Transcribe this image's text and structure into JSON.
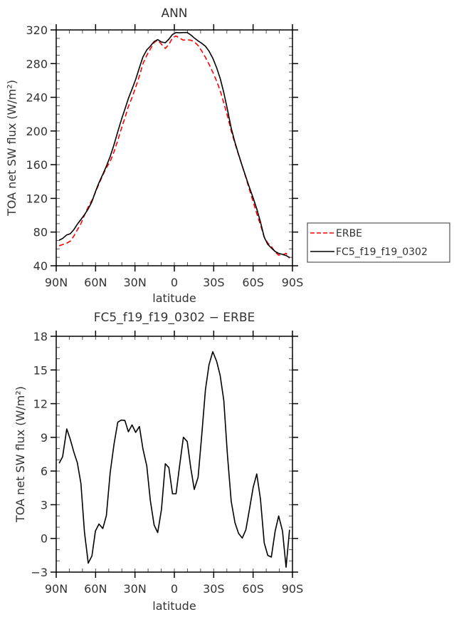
{
  "chart_data": [
    {
      "type": "line",
      "title": "ANN",
      "xlabel": "latitude",
      "ylabel": "TOA net SW flux (W/m²)",
      "xlim": [
        90,
        -90
      ],
      "ylim": [
        40,
        320
      ],
      "xticks": [
        90,
        60,
        30,
        0,
        -30,
        -60,
        -90
      ],
      "xtick_labels": [
        "90N",
        "60N",
        "30N",
        "0",
        "30S",
        "60S",
        "90S"
      ],
      "yticks": [
        40,
        80,
        120,
        160,
        200,
        240,
        280,
        320
      ],
      "ytick_labels": [
        "40",
        "80",
        "120",
        "160",
        "200",
        "240",
        "280",
        "320"
      ],
      "grid": false,
      "legend_position": "right",
      "x": [
        87.8,
        85.1,
        82.0,
        79.3,
        76.6,
        73.9,
        71.2,
        68.5,
        65.6,
        62.8,
        60.1,
        57.4,
        54.5,
        51.8,
        48.9,
        46.0,
        43.1,
        40.4,
        37.7,
        35.0,
        32.2,
        29.5,
        26.6,
        23.9,
        21.0,
        18.3,
        15.4,
        12.7,
        9.8,
        6.9,
        4.2,
        1.4,
        -1.3,
        -4.0,
        -6.9,
        -9.8,
        -12.5,
        -15.2,
        -18.1,
        -20.8,
        -23.7,
        -26.4,
        -29.3,
        -32.2,
        -34.9,
        -37.7,
        -40.4,
        -43.3,
        -46.2,
        -48.9,
        -51.8,
        -54.5,
        -57.2,
        -60.1,
        -62.8,
        -65.6,
        -68.5,
        -71.2,
        -73.9,
        -76.8,
        -79.5,
        -82.4,
        -85.1,
        -87.8
      ],
      "series": [
        {
          "name": "ERBE",
          "color": "#ff0000",
          "dash": true,
          "values": [
            63.7,
            65.1,
            66.8,
            69.2,
            75.1,
            82.6,
            90.0,
            100.0,
            109.8,
            117.7,
            127.2,
            137.3,
            147.6,
            156.3,
            163.8,
            175.3,
            188.8,
            202.7,
            215.4,
            229.1,
            239.8,
            251.7,
            265.2,
            279.9,
            289.9,
            297.2,
            305.0,
            308.0,
            303.0,
            298.1,
            302.7,
            310.6,
            312.9,
            310.1,
            307.9,
            308.3,
            307.8,
            306.0,
            301.5,
            295.1,
            287.4,
            279.4,
            269.9,
            259.4,
            248.0,
            233.3,
            218.4,
            200.1,
            185.1,
            171.9,
            158.3,
            144.8,
            130.4,
            115.7,
            101.9,
            88.6,
            74.2,
            66.9,
            62.8,
            56.2,
            52.6,
            52.8,
            54.7,
            49.0
          ]
        },
        {
          "name": "FC5_f19_f19_0302",
          "color": "#000000",
          "dash": false,
          "values": [
            70.4,
            72.4,
            76.6,
            78.0,
            82.8,
            89.3,
            94.9,
            100.6,
            107.6,
            116.1,
            127.9,
            138.6,
            148.5,
            158.3,
            169.6,
            183.7,
            199.2,
            213.2,
            225.9,
            238.6,
            249.9,
            261.1,
            275.2,
            287.9,
            296.3,
            300.6,
            306.2,
            308.5,
            305.6,
            304.8,
            309.0,
            314.6,
            316.9,
            316.6,
            316.9,
            316.9,
            314.1,
            310.4,
            307.0,
            304.2,
            300.6,
            294.9,
            286.5,
            275.2,
            262.5,
            245.6,
            225.9,
            203.4,
            186.5,
            172.4,
            158.3,
            145.6,
            133.0,
            120.3,
            107.6,
            92.1,
            73.8,
            65.4,
            61.1,
            56.9,
            54.6,
            53.5,
            52.1,
            49.8
          ]
        }
      ]
    },
    {
      "type": "line",
      "title": "FC5_f19_f19_0302 − ERBE",
      "xlabel": "latitude",
      "ylabel": "TOA net SW flux (W/m²)",
      "xlim": [
        90,
        -90
      ],
      "ylim": [
        -3,
        18
      ],
      "xticks": [
        90,
        60,
        30,
        0,
        -30,
        -60,
        -90
      ],
      "xtick_labels": [
        "90N",
        "60N",
        "30N",
        "0",
        "30S",
        "60S",
        "90S"
      ],
      "yticks": [
        -3,
        0,
        3,
        6,
        9,
        12,
        15,
        18
      ],
      "ytick_labels": [
        "−3",
        "0",
        "3",
        "6",
        "9",
        "12",
        "15",
        "18"
      ],
      "grid": false,
      "x": [
        87.8,
        85.1,
        82.0,
        79.3,
        76.6,
        73.9,
        71.2,
        68.5,
        65.6,
        62.8,
        60.1,
        57.4,
        54.5,
        51.8,
        48.9,
        46.0,
        43.1,
        40.4,
        37.7,
        35.0,
        32.2,
        29.5,
        26.6,
        23.9,
        21.0,
        18.3,
        15.4,
        12.7,
        9.8,
        6.9,
        4.2,
        1.4,
        -1.3,
        -4.0,
        -6.9,
        -9.8,
        -12.5,
        -15.2,
        -18.1,
        -20.8,
        -23.7,
        -26.4,
        -29.3,
        -32.2,
        -34.9,
        -37.7,
        -40.4,
        -43.3,
        -46.2,
        -48.9,
        -51.8,
        -54.5,
        -57.2,
        -60.1,
        -62.8,
        -65.6,
        -68.5,
        -71.2,
        -73.9,
        -76.8,
        -79.5,
        -82.4,
        -85.1,
        -87.8
      ],
      "series": [
        {
          "name": "FC5_f19_f19_0302 - ERBE",
          "color": "#000000",
          "dash": false,
          "values": [
            6.69,
            7.28,
            9.75,
            8.84,
            7.7,
            6.73,
            4.9,
            0.56,
            -2.2,
            -1.56,
            0.66,
            1.28,
            0.88,
            2.04,
            5.84,
            8.38,
            10.35,
            10.54,
            10.5,
            9.5,
            10.11,
            9.44,
            9.97,
            7.96,
            6.44,
            3.41,
            1.19,
            0.52,
            2.57,
            6.65,
            6.31,
            3.98,
            3.98,
            6.48,
            9.01,
            8.63,
            6.27,
            4.36,
            5.46,
            9.12,
            13.24,
            15.46,
            16.63,
            15.78,
            14.51,
            12.29,
            7.53,
            3.31,
            1.4,
            0.45,
            0.03,
            0.77,
            2.57,
            4.58,
            5.74,
            3.52,
            -0.39,
            -1.51,
            -1.66,
            0.66,
            2.0,
            0.66,
            -2.57,
            0.77
          ]
        }
      ]
    }
  ]
}
